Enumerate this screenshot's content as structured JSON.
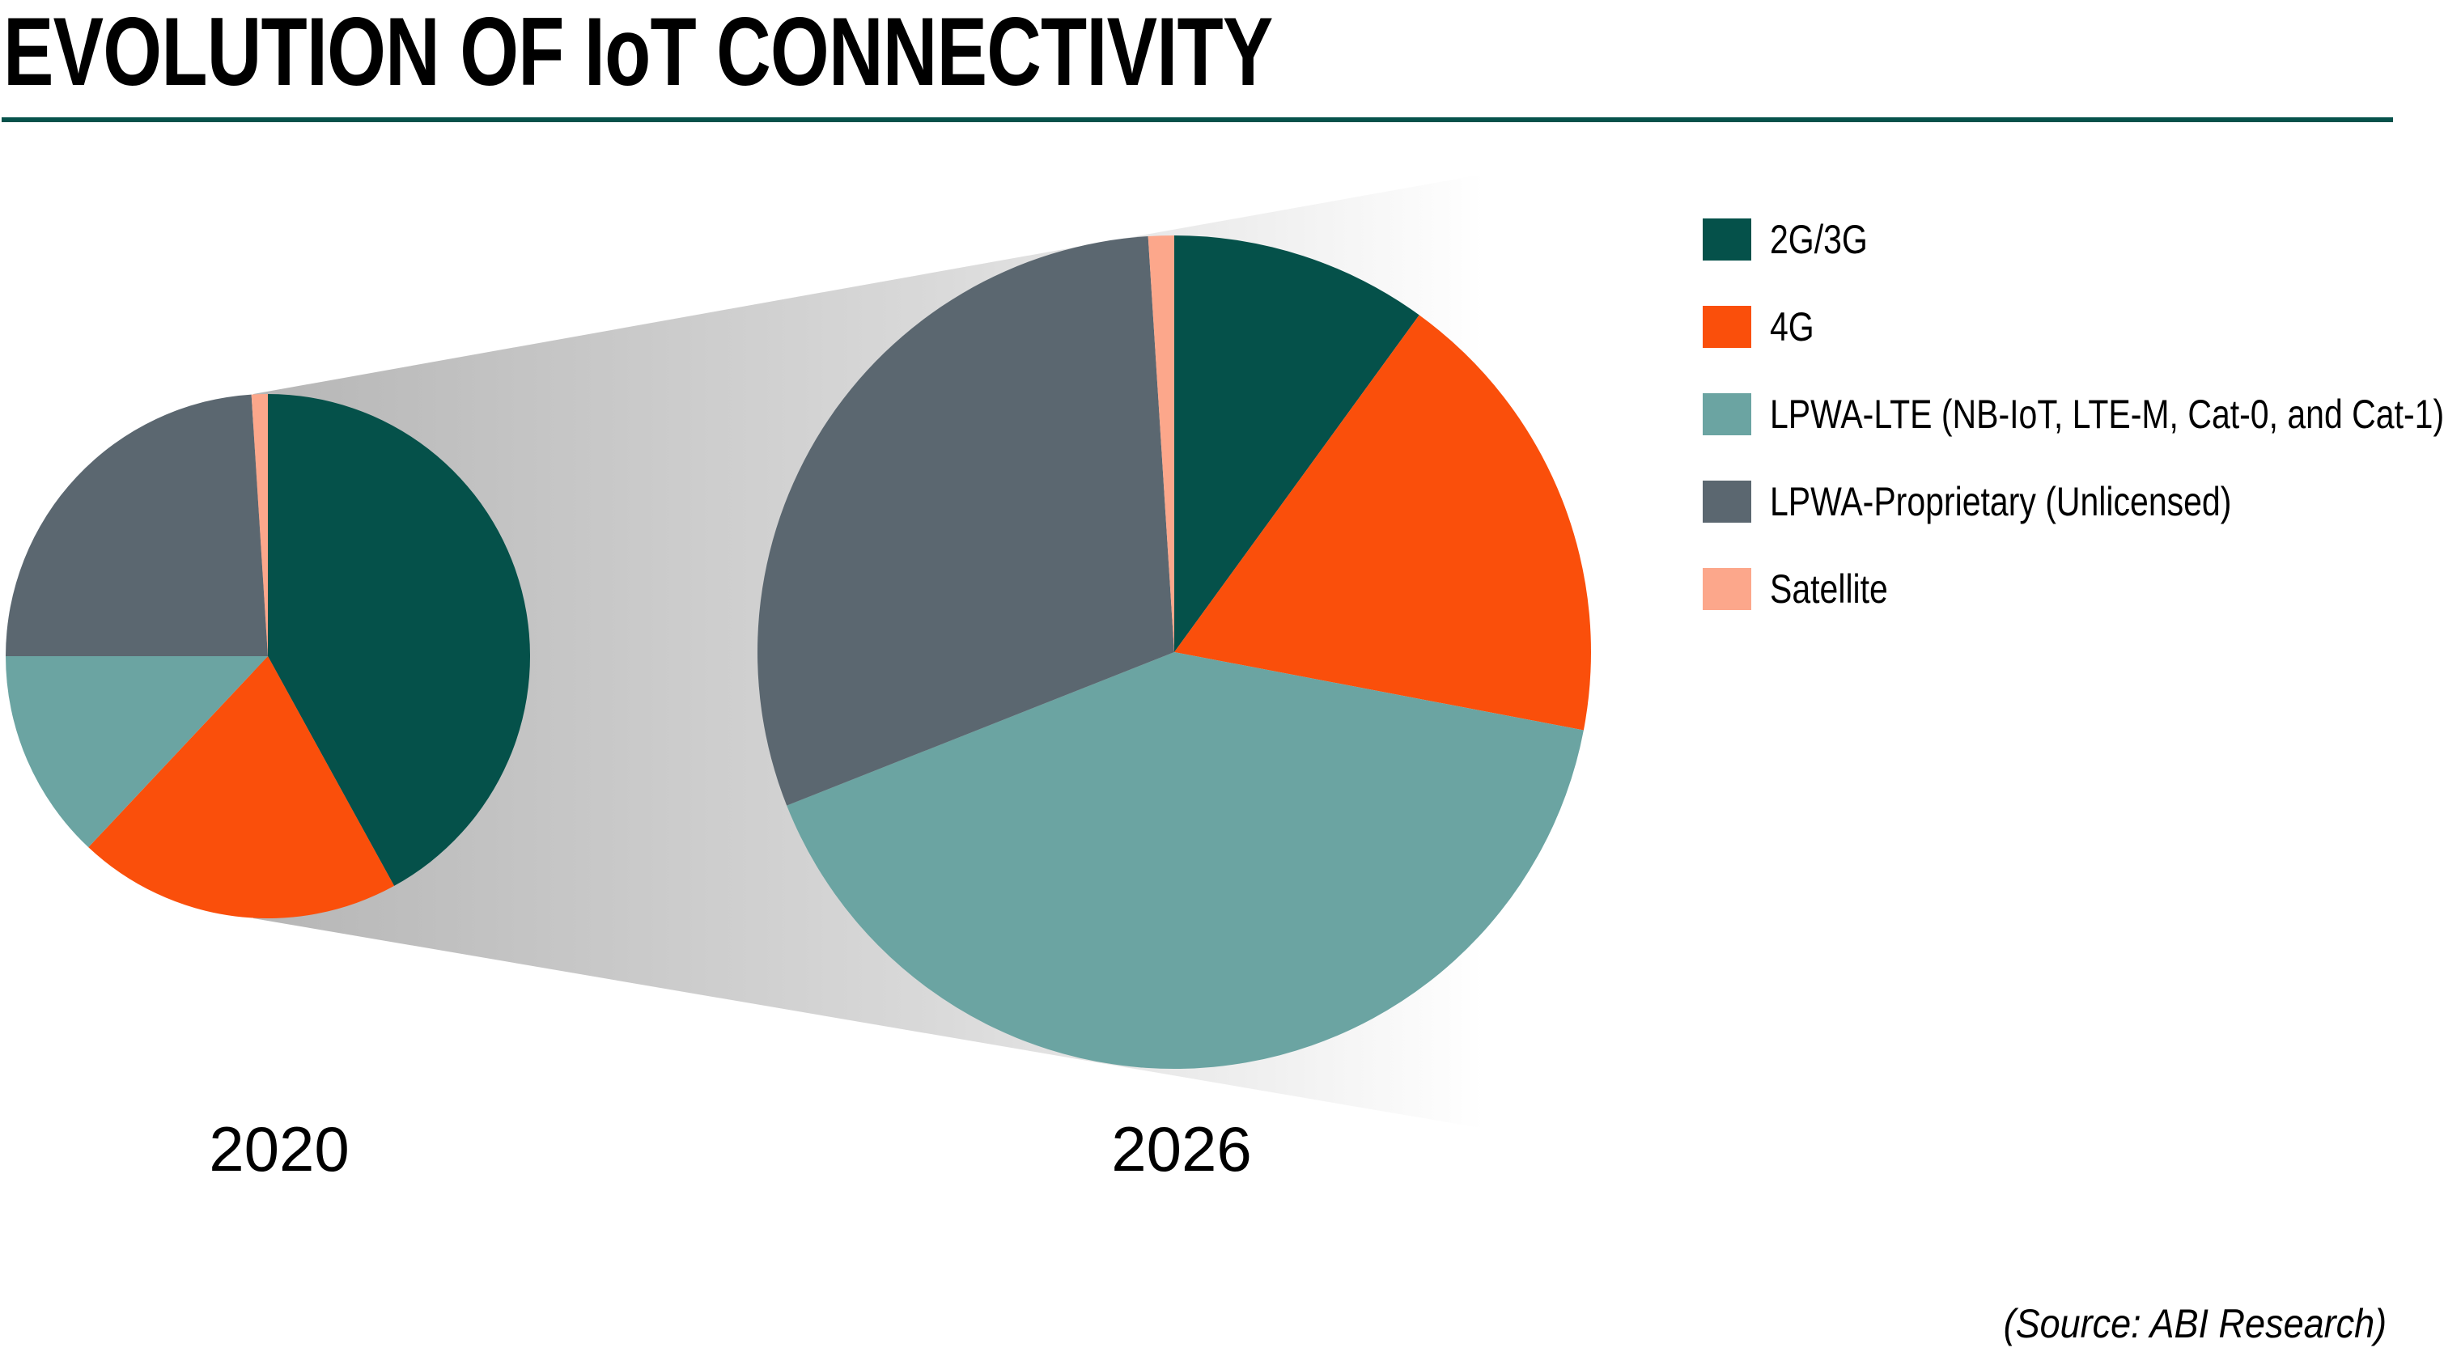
{
  "header": {
    "title": "EVOLUTION OF IoT CONNECTIVITY"
  },
  "footer": {
    "source": "(Source: ABI Research)"
  },
  "colors": {
    "rule": "#06524b",
    "zoom_band_start": "#b6b6b6",
    "zoom_band_end": "#ffffff"
  },
  "chart_data": {
    "type": "pie",
    "title": "EVOLUTION OF IoT CONNECTIVITY",
    "legend_position": "right",
    "unit": "percent share (estimated from slice angles)",
    "categories": [
      "2G/3G",
      "4G",
      "LPWA-LTE (NB-IoT, LTE-M, Cat-0, and Cat-1)",
      "LPWA-Proprietary (Unlicensed)",
      "Satellite"
    ],
    "colors": [
      "#05514a",
      "#fa4f0b",
      "#6ba4a2",
      "#5b6770",
      "#fca78b"
    ],
    "series": [
      {
        "name": "2020",
        "values": [
          42,
          20,
          13,
          24,
          1
        ]
      },
      {
        "name": "2026",
        "values": [
          10,
          18,
          41,
          30,
          1
        ]
      }
    ]
  }
}
